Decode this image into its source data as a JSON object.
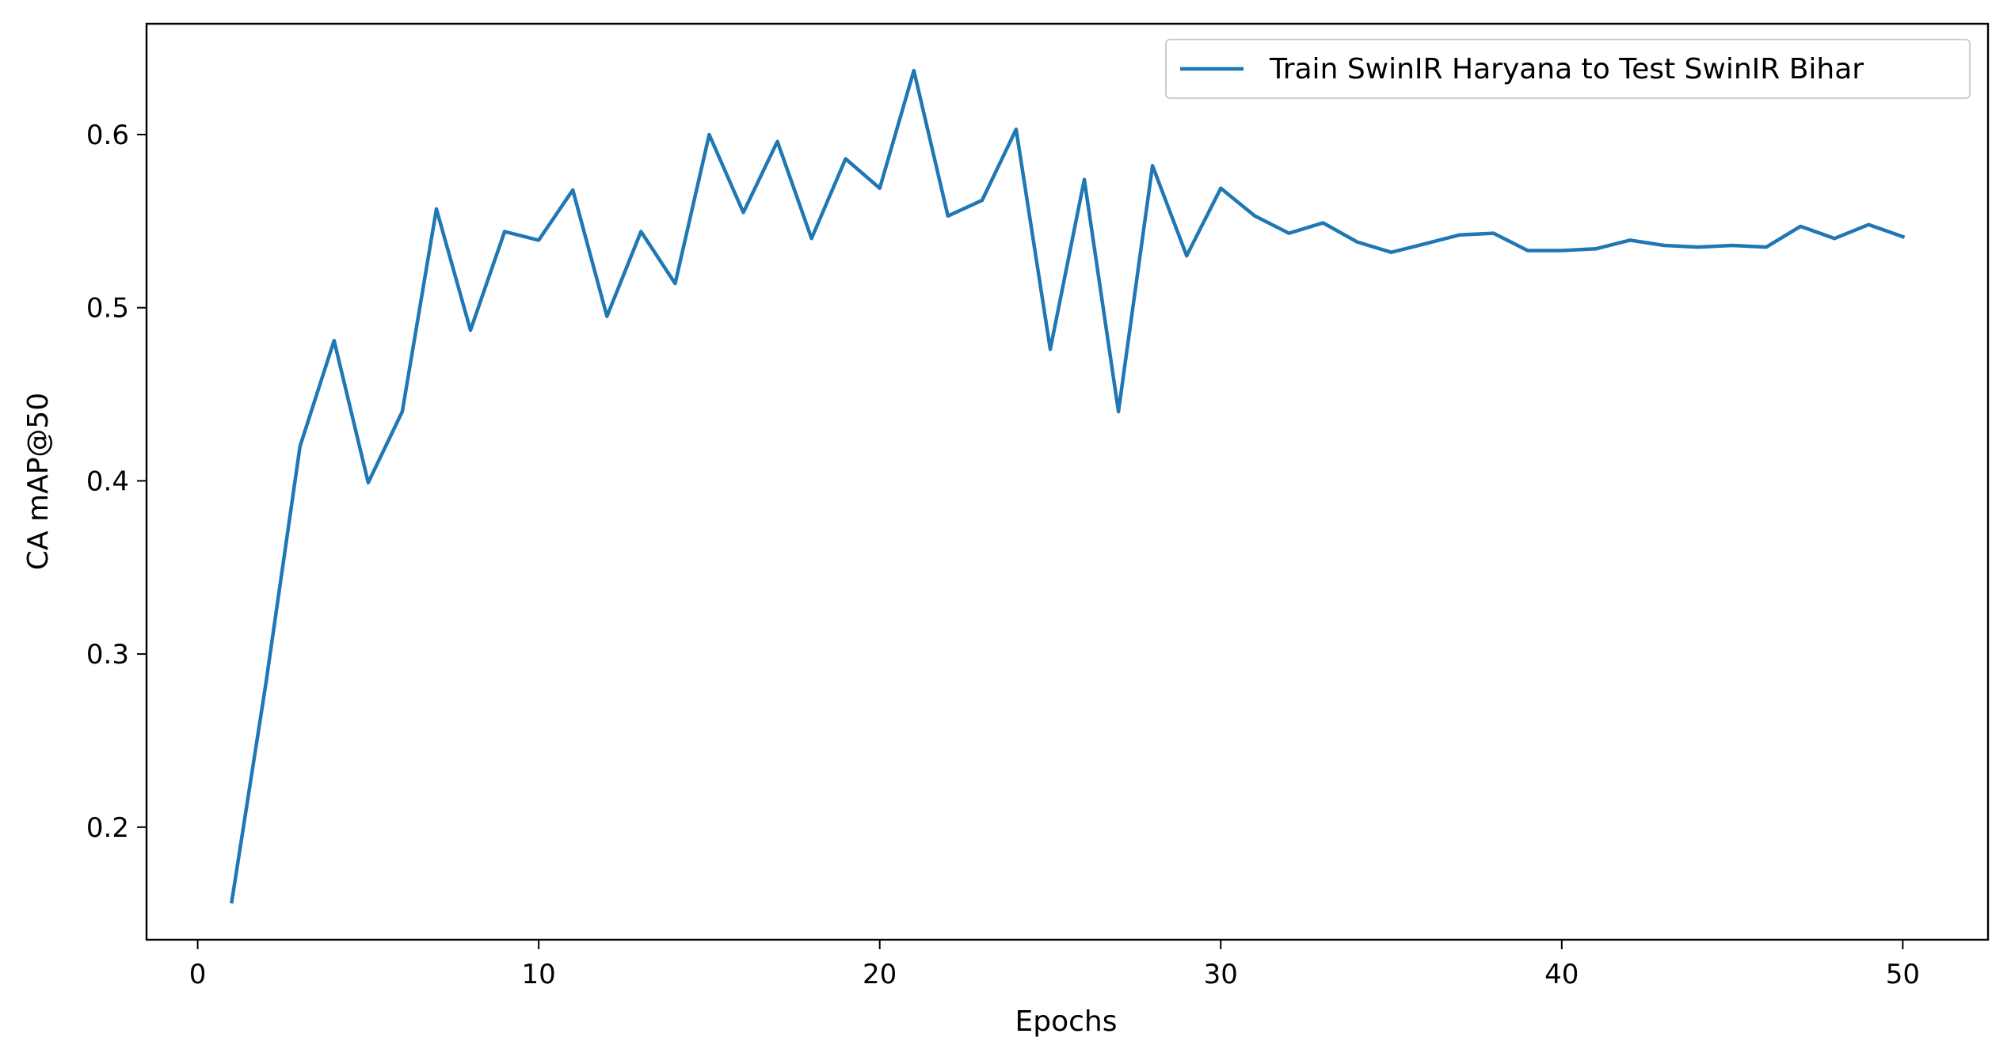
{
  "chart_data": {
    "type": "line",
    "title": "",
    "xlabel": "Epochs",
    "ylabel": "CA mAP@50",
    "xlim": [
      -1.5,
      52.5
    ],
    "ylim": [
      0.135,
      0.664
    ],
    "xticks": [
      0,
      10,
      20,
      30,
      40,
      50
    ],
    "yticks": [
      0.2,
      0.3,
      0.4,
      0.5,
      0.6
    ],
    "grid": false,
    "legend_position": "top-right",
    "series": [
      {
        "name": "Train SwinIR Haryana to Test SwinIR Bihar",
        "color": "#1f77b4",
        "x": [
          1,
          2,
          3,
          4,
          5,
          6,
          7,
          8,
          9,
          10,
          11,
          12,
          13,
          14,
          15,
          16,
          17,
          18,
          19,
          20,
          21,
          22,
          23,
          24,
          25,
          26,
          27,
          28,
          29,
          30,
          31,
          32,
          33,
          34,
          35,
          36,
          37,
          38,
          39,
          40,
          41,
          42,
          43,
          44,
          45,
          46,
          47,
          48,
          49,
          50
        ],
        "y": [
          0.157,
          0.283,
          0.42,
          0.481,
          0.399,
          0.44,
          0.557,
          0.487,
          0.544,
          0.539,
          0.568,
          0.495,
          0.544,
          0.514,
          0.6,
          0.555,
          0.596,
          0.54,
          0.586,
          0.569,
          0.637,
          0.553,
          0.562,
          0.603,
          0.476,
          0.574,
          0.44,
          0.582,
          0.53,
          0.569,
          0.553,
          0.543,
          0.549,
          0.538,
          0.532,
          0.537,
          0.542,
          0.543,
          0.533,
          0.533,
          0.534,
          0.539,
          0.536,
          0.535,
          0.536,
          0.535,
          0.547,
          0.54,
          0.548,
          0.541
        ]
      }
    ]
  }
}
